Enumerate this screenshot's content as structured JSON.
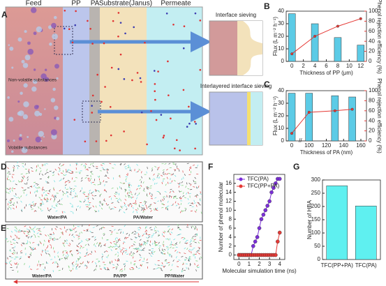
{
  "panel_labels": [
    "A",
    "B",
    "C",
    "D",
    "E",
    "F",
    "G"
  ],
  "schematic": {
    "columns": [
      "Feed",
      "PP",
      "PA",
      "Substrate(Janus)",
      "Permeate"
    ],
    "insets": [
      "Interface sieving",
      "Interlayered interface sieving"
    ],
    "feed_notes": [
      "Non-volatile substances",
      "Volatile substances"
    ]
  },
  "snapshots": {
    "D": [
      "Water/PA",
      "PA/Water"
    ],
    "E": [
      "Water/PA",
      "PA/PP",
      "PP/Water"
    ]
  },
  "chart_data": [
    {
      "type": "bar",
      "xlabel": "Thickness of PP (μm)",
      "ylabel": "Flux (L m⁻² h⁻¹)",
      "y2label": "Phenol rejection efficiency (%)",
      "x": [
        0,
        4,
        8,
        12
      ],
      "xlim": [
        -1,
        13
      ],
      "xticks": [
        0,
        2,
        4,
        6,
        8,
        10,
        12
      ],
      "ylim": [
        0,
        40
      ],
      "yticks": [
        0,
        10,
        20,
        30,
        40
      ],
      "y2lim": [
        0,
        100
      ],
      "y2ticks": [
        0,
        20,
        40,
        60,
        80,
        100
      ],
      "series": [
        {
          "type": "bar",
          "color": "#5ccbe6",
          "values": [
            38,
            30,
            19,
            13
          ]
        },
        {
          "type": "line",
          "axis": "y2",
          "color": "#e53935",
          "values": [
            15,
            50,
            70,
            85
          ]
        }
      ]
    },
    {
      "type": "bar",
      "xlabel": "Thickness of PA (nm)",
      "ylabel": "Flux (L m⁻² h⁻¹)",
      "y2label": "Phenol rejection efficiency (%)",
      "x": [
        0,
        100,
        130,
        150
      ],
      "axis_break": true,
      "xticks": [
        0,
        100,
        120,
        140,
        160
      ],
      "ylim": [
        0,
        40
      ],
      "yticks": [
        0,
        10,
        20,
        30,
        40
      ],
      "y2lim": [
        0,
        100
      ],
      "y2ticks": [
        0,
        20,
        40,
        60,
        80,
        100
      ],
      "series": [
        {
          "type": "bar",
          "color": "#5ccbe6",
          "values": [
            38,
            38,
            36,
            35
          ]
        },
        {
          "type": "line",
          "axis": "y2",
          "color": "#e53935",
          "values": [
            15,
            57,
            60,
            63
          ]
        }
      ]
    },
    {
      "type": "line",
      "xlabel": "Molecular simulation time (ns)",
      "ylabel": "Number of phenol molecular",
      "x": [
        0,
        0.2,
        0.4,
        0.6,
        0.8,
        1.0,
        1.2,
        1.4,
        1.6,
        1.8,
        2.0,
        2.2,
        2.4,
        2.6,
        2.8,
        3.0,
        3.2,
        3.4,
        3.6,
        3.8,
        4.0
      ],
      "xlim": [
        -0.5,
        4.5
      ],
      "xticks": [
        0,
        1,
        2,
        3,
        4
      ],
      "ylim": [
        -1,
        18
      ],
      "yticks": [
        0,
        2,
        4,
        6,
        8,
        10,
        12,
        14,
        16
      ],
      "series": [
        {
          "name": "TFC(PA)",
          "color": "#7b2fd8",
          "values": [
            0,
            0,
            0,
            0,
            0,
            0,
            0,
            2,
            3,
            4,
            6,
            8,
            9,
            10,
            11,
            12,
            14,
            15,
            16,
            17,
            17
          ]
        },
        {
          "name": "TFC(PP+PA)",
          "color": "#e53935",
          "values": [
            0,
            0,
            0,
            0,
            0,
            0,
            0,
            0,
            0,
            0,
            0,
            0,
            0,
            0,
            0,
            0,
            0,
            0,
            0,
            3,
            5
          ]
        }
      ]
    },
    {
      "type": "bar",
      "ylabel": "Number of HBA",
      "categories": [
        "TFC(PP+PA)",
        "TFC(PA)"
      ],
      "values": [
        278,
        202
      ],
      "color": "#5ff0f0",
      "ylim": [
        0,
        300
      ],
      "yticks": [
        0,
        50,
        100,
        150,
        200,
        250,
        300
      ]
    }
  ]
}
